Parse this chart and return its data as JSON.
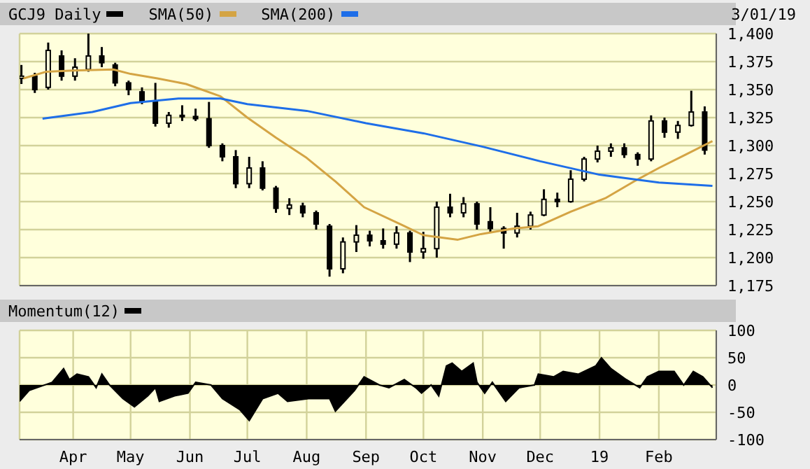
{
  "chart_data": [
    {
      "type": "candlestick",
      "annotations": [
        "3/01/19"
      ],
      "legend": "top left",
      "grid": true,
      "tick_labels": "y",
      "xlim": [
        "2018-03-04",
        "2019-03-03"
      ],
      "xticks": [
        {
          "value": "2018-04-01",
          "label": null
        },
        {
          "value": "2018-05-01",
          "label": null
        },
        {
          "value": "2018-06-01",
          "label": null
        },
        {
          "value": "2018-07-01",
          "label": null
        },
        {
          "value": "2018-08-01",
          "label": null
        },
        {
          "value": "2018-09-01",
          "label": null
        },
        {
          "value": "2018-10-01",
          "label": null
        },
        {
          "value": "2018-11-01",
          "label": null
        },
        {
          "value": "2018-12-01",
          "label": null
        },
        {
          "value": "2019-01-01",
          "label": null
        },
        {
          "value": "2019-02-01",
          "label": null
        }
      ],
      "ylim": [
        1175,
        1400
      ],
      "yticks": [
        {
          "value": 1175,
          "label": "1,175"
        },
        {
          "value": 1200,
          "label": "1,200"
        },
        {
          "value": 1225,
          "label": "1,225"
        },
        {
          "value": 1250,
          "label": "1,250"
        },
        {
          "value": 1275,
          "label": "1,275"
        },
        {
          "value": 1300,
          "label": "1,300"
        },
        {
          "value": 1325,
          "label": "1,325"
        },
        {
          "value": 1350,
          "label": "1,350"
        },
        {
          "value": 1375,
          "label": "1,375"
        },
        {
          "value": 1400,
          "label": "1,400"
        }
      ],
      "series": [
        {
          "name": "GCJ9 Daily",
          "type": "candlestick",
          "color": "#000000",
          "x": [
            "2018-03-05",
            "2018-03-12",
            "2018-03-19",
            "2018-03-26",
            "2018-04-02",
            "2018-04-09",
            "2018-04-16",
            "2018-04-23",
            "2018-04-30",
            "2018-05-07",
            "2018-05-14",
            "2018-05-21",
            "2018-05-28",
            "2018-06-04",
            "2018-06-11",
            "2018-06-18",
            "2018-06-25",
            "2018-07-02",
            "2018-07-09",
            "2018-07-16",
            "2018-07-23",
            "2018-07-30",
            "2018-08-06",
            "2018-08-13",
            "2018-08-20",
            "2018-08-27",
            "2018-09-03",
            "2018-09-10",
            "2018-09-17",
            "2018-09-24",
            "2018-10-01",
            "2018-10-08",
            "2018-10-15",
            "2018-10-22",
            "2018-10-29",
            "2018-11-05",
            "2018-11-12",
            "2018-11-19",
            "2018-11-26",
            "2018-12-03",
            "2018-12-10",
            "2018-12-17",
            "2018-12-24",
            "2018-12-31",
            "2019-01-07",
            "2019-01-14",
            "2019-01-21",
            "2019-01-28",
            "2019-02-04",
            "2019-02-11",
            "2019-02-18",
            "2019-02-25"
          ],
          "ohlc": [
            [
              1360,
              1372,
              1355,
              1362
            ],
            [
              1362,
              1365,
              1347,
              1350
            ],
            [
              1352,
              1392,
              1350,
              1385
            ],
            [
              1380,
              1385,
              1358,
              1362
            ],
            [
              1362,
              1378,
              1358,
              1370
            ],
            [
              1368,
              1400,
              1366,
              1380
            ],
            [
              1380,
              1388,
              1370,
              1374
            ],
            [
              1372,
              1374,
              1353,
              1356
            ],
            [
              1356,
              1358,
              1345,
              1350
            ],
            [
              1348,
              1352,
              1337,
              1340
            ],
            [
              1340,
              1356,
              1317,
              1320
            ],
            [
              1320,
              1330,
              1316,
              1327
            ],
            [
              1327,
              1336,
              1322,
              1326
            ],
            [
              1326,
              1333,
              1322,
              1324
            ],
            [
              1324,
              1339,
              1298,
              1300
            ],
            [
              1300,
              1302,
              1286,
              1290
            ],
            [
              1290,
              1296,
              1262,
              1266
            ],
            [
              1266,
              1290,
              1262,
              1280
            ],
            [
              1280,
              1286,
              1260,
              1262
            ],
            [
              1262,
              1264,
              1240,
              1244
            ],
            [
              1244,
              1253,
              1238,
              1247
            ],
            [
              1246,
              1249,
              1236,
              1240
            ],
            [
              1240,
              1242,
              1225,
              1230
            ],
            [
              1228,
              1230,
              1183,
              1190
            ],
            [
              1190,
              1218,
              1186,
              1214
            ],
            [
              1214,
              1229,
              1205,
              1220
            ],
            [
              1220,
              1224,
              1210,
              1215
            ],
            [
              1215,
              1226,
              1208,
              1212
            ],
            [
              1212,
              1228,
              1208,
              1222
            ],
            [
              1222,
              1224,
              1196,
              1205
            ],
            [
              1205,
              1223,
              1199,
              1208
            ],
            [
              1208,
              1250,
              1200,
              1245
            ],
            [
              1245,
              1257,
              1236,
              1240
            ],
            [
              1240,
              1254,
              1236,
              1248
            ],
            [
              1248,
              1250,
              1225,
              1230
            ],
            [
              1232,
              1245,
              1222,
              1226
            ],
            [
              1226,
              1228,
              1208,
              1222
            ],
            [
              1222,
              1240,
              1218,
              1228
            ],
            [
              1228,
              1241,
              1225,
              1238
            ],
            [
              1238,
              1261,
              1237,
              1252
            ],
            [
              1252,
              1258,
              1245,
              1250
            ],
            [
              1250,
              1278,
              1249,
              1270
            ],
            [
              1270,
              1290,
              1268,
              1288
            ],
            [
              1288,
              1300,
              1285,
              1295
            ],
            [
              1295,
              1302,
              1290,
              1298
            ],
            [
              1298,
              1302,
              1289,
              1292
            ],
            [
              1292,
              1294,
              1282,
              1288
            ],
            [
              1288,
              1327,
              1286,
              1322
            ],
            [
              1322,
              1325,
              1307,
              1312
            ],
            [
              1312,
              1322,
              1306,
              1318
            ],
            [
              1318,
              1349,
              1317,
              1330
            ],
            [
              1330,
              1335,
              1292,
              1296
            ]
          ]
        },
        {
          "name": "SMA(50)",
          "type": "line",
          "color": "#d4a444",
          "x": [
            "2018-03-06",
            "2018-03-18",
            "2018-04-01",
            "2018-04-22",
            "2018-05-01",
            "2018-05-15",
            "2018-05-30",
            "2018-06-17",
            "2018-07-01",
            "2018-07-16",
            "2018-08-01",
            "2018-08-16",
            "2018-08-31",
            "2018-09-20",
            "2018-10-01",
            "2018-10-19",
            "2018-10-31",
            "2018-11-17",
            "2018-11-30",
            "2018-12-17",
            "2019-01-04",
            "2019-01-19",
            "2019-02-01",
            "2019-02-15",
            "2019-03-01"
          ],
          "values": [
            1360,
            1366,
            1367,
            1368,
            1364,
            1360,
            1355,
            1344,
            1325,
            1307,
            1289,
            1268,
            1245,
            1229,
            1220,
            1216,
            1221,
            1226,
            1228,
            1241,
            1253,
            1268,
            1280,
            1292,
            1304
          ]
        },
        {
          "name": "SMA(200)",
          "type": "line",
          "color": "#1e6ee8",
          "x": [
            "2018-03-16",
            "2018-04-11",
            "2018-05-01",
            "2018-05-26",
            "2018-06-17",
            "2018-07-01",
            "2018-08-01",
            "2018-09-01",
            "2018-10-01",
            "2018-11-01",
            "2018-12-01",
            "2019-01-01",
            "2019-02-01",
            "2019-03-01"
          ],
          "values": [
            1324,
            1330,
            1338,
            1342,
            1342,
            1337,
            1331,
            1320,
            1311,
            1299,
            1286,
            1274,
            1267,
            1264
          ]
        }
      ]
    },
    {
      "type": "area",
      "legend": "top left",
      "grid": true,
      "xlim": [
        "2018-03-04",
        "2019-03-03"
      ],
      "xticks": [
        {
          "value": "2018-04-01",
          "label": "Apr"
        },
        {
          "value": "2018-05-01",
          "label": "May"
        },
        {
          "value": "2018-06-01",
          "label": "Jun"
        },
        {
          "value": "2018-07-01",
          "label": "Jul"
        },
        {
          "value": "2018-08-01",
          "label": "Aug"
        },
        {
          "value": "2018-09-01",
          "label": "Sep"
        },
        {
          "value": "2018-10-01",
          "label": "Oct"
        },
        {
          "value": "2018-11-01",
          "label": "Nov"
        },
        {
          "value": "2018-12-01",
          "label": "Dec"
        },
        {
          "value": "2019-01-01",
          "label": "19"
        },
        {
          "value": "2019-02-01",
          "label": "Feb"
        }
      ],
      "ylim": [
        -100,
        100
      ],
      "yticks": [
        -100,
        -50,
        0,
        50,
        100
      ],
      "series": [
        {
          "name": "Momentum(12)",
          "color": "#000000",
          "x": [
            "2018-03-04",
            "2018-03-09",
            "2018-03-21",
            "2018-03-27",
            "2018-03-30",
            "2018-04-03",
            "2018-04-09",
            "2018-04-13",
            "2018-04-16",
            "2018-04-20",
            "2018-04-27",
            "2018-05-03",
            "2018-05-10",
            "2018-05-14",
            "2018-05-16",
            "2018-05-24",
            "2018-05-31",
            "2018-06-04",
            "2018-06-12",
            "2018-06-18",
            "2018-06-27",
            "2018-07-02",
            "2018-07-09",
            "2018-07-17",
            "2018-07-22",
            "2018-08-02",
            "2018-08-13",
            "2018-08-16",
            "2018-08-26",
            "2018-08-31",
            "2018-09-08",
            "2018-09-13",
            "2018-09-21",
            "2018-09-27",
            "2018-09-30",
            "2018-10-05",
            "2018-10-09",
            "2018-10-13",
            "2018-10-16",
            "2018-10-21",
            "2018-10-27",
            "2018-10-29",
            "2018-11-02",
            "2018-11-06",
            "2018-11-13",
            "2018-11-20",
            "2018-11-28",
            "2018-11-30",
            "2018-12-08",
            "2018-12-13",
            "2018-12-21",
            "2018-12-30",
            "2019-01-02",
            "2019-01-07",
            "2019-01-15",
            "2019-01-22",
            "2019-01-26",
            "2019-02-01",
            "2019-02-09",
            "2019-02-14",
            "2019-02-19",
            "2019-02-24",
            "2019-03-01"
          ],
          "values": [
            -30,
            -10,
            5,
            30,
            10,
            20,
            15,
            -5,
            20,
            0,
            -25,
            -40,
            -20,
            -5,
            -30,
            -20,
            -15,
            5,
            0,
            -25,
            -45,
            -65,
            -25,
            -15,
            -30,
            -25,
            -25,
            -48,
            -10,
            15,
            0,
            -5,
            10,
            -5,
            -15,
            0,
            -20,
            35,
            40,
            25,
            40,
            5,
            -15,
            5,
            -30,
            -5,
            0,
            20,
            15,
            25,
            20,
            35,
            50,
            30,
            10,
            -5,
            15,
            25,
            25,
            0,
            25,
            15,
            -5
          ]
        }
      ]
    }
  ]
}
